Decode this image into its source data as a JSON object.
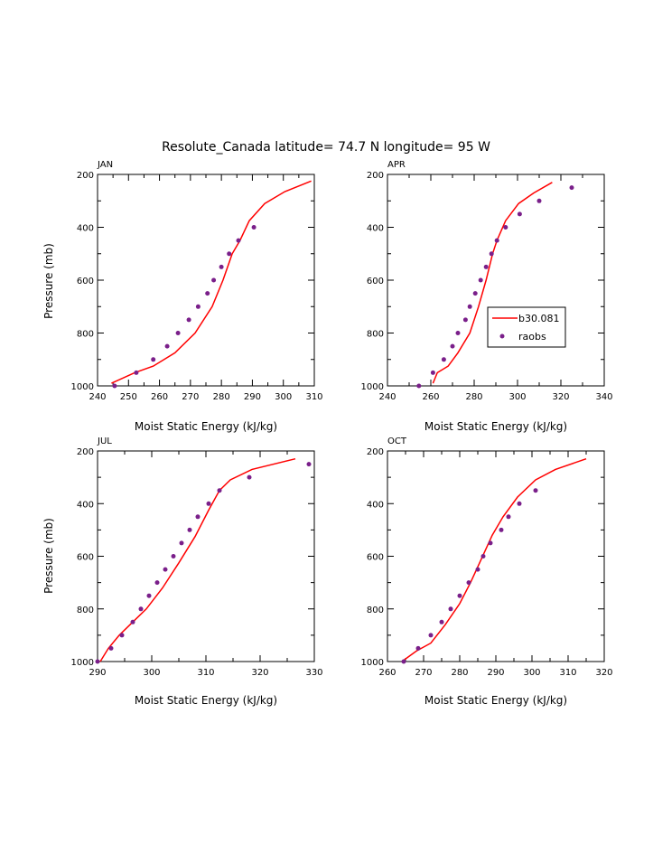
{
  "figure_title": "Resolute_Canada   latitude= 74.7 N longitude= 95 W",
  "colors": {
    "model_line": "#ff0000",
    "raobs_marker": "#7a1f8a",
    "axis": "#000000"
  },
  "legend": {
    "line_label": "b30.081",
    "marker_label": "raobs"
  },
  "chart_data": [
    {
      "type": "line",
      "panel": "JAN",
      "xlabel": "Moist Static Energy (kJ/kg)",
      "ylabel": "Pressure (mb)",
      "xlim": [
        240,
        310
      ],
      "ylim": [
        1000,
        200
      ],
      "xticks": [
        240,
        250,
        260,
        270,
        280,
        290,
        300,
        310
      ],
      "yticks": [
        200,
        400,
        600,
        800,
        1000
      ],
      "series": [
        {
          "name": "b30.081",
          "kind": "line",
          "points": [
            [
              244.5,
              990
            ],
            [
              252,
              950
            ],
            [
              258,
              925
            ],
            [
              265,
              875
            ],
            [
              271.5,
              800
            ],
            [
              277,
              700
            ],
            [
              280.5,
              600
            ],
            [
              283.5,
              500
            ],
            [
              286,
              450
            ],
            [
              289,
              375
            ],
            [
              294,
              310
            ],
            [
              300.5,
              265
            ],
            [
              309,
              225
            ]
          ]
        },
        {
          "name": "raobs",
          "kind": "marker",
          "points": [
            [
              245.5,
              1000
            ],
            [
              252.5,
              950
            ],
            [
              258,
              900
            ],
            [
              262.5,
              850
            ],
            [
              266,
              800
            ],
            [
              269.5,
              750
            ],
            [
              272.5,
              700
            ],
            [
              275.5,
              650
            ],
            [
              277.5,
              600
            ],
            [
              280,
              550
            ],
            [
              282.5,
              500
            ],
            [
              285.5,
              450
            ],
            [
              290.5,
              400
            ]
          ]
        }
      ]
    },
    {
      "type": "line",
      "panel": "APR",
      "xlabel": "Moist Static Energy (kJ/kg)",
      "ylabel": "",
      "xlim": [
        240,
        340
      ],
      "ylim": [
        1000,
        200
      ],
      "xticks": [
        240,
        260,
        280,
        300,
        320,
        340
      ],
      "yticks": [
        200,
        400,
        600,
        800,
        1000
      ],
      "legend_position": "right-middle",
      "series": [
        {
          "name": "b30.081",
          "kind": "line",
          "points": [
            [
              261,
              990
            ],
            [
              263,
              950
            ],
            [
              268,
              925
            ],
            [
              272.5,
              875
            ],
            [
              278,
              800
            ],
            [
              282,
              700
            ],
            [
              285.5,
              600
            ],
            [
              288.5,
              500
            ],
            [
              290.5,
              450
            ],
            [
              294.5,
              375
            ],
            [
              300.5,
              310
            ],
            [
              307.5,
              270
            ],
            [
              316,
              230
            ]
          ]
        },
        {
          "name": "raobs",
          "kind": "marker",
          "points": [
            [
              254.5,
              1000
            ],
            [
              261,
              950
            ],
            [
              266,
              900
            ],
            [
              270,
              850
            ],
            [
              272.5,
              800
            ],
            [
              276,
              750
            ],
            [
              278,
              700
            ],
            [
              280.5,
              650
            ],
            [
              283,
              600
            ],
            [
              285.5,
              550
            ],
            [
              288,
              500
            ],
            [
              290.5,
              450
            ],
            [
              294.5,
              400
            ],
            [
              301,
              350
            ],
            [
              310,
              300
            ],
            [
              325,
              250
            ]
          ]
        }
      ]
    },
    {
      "type": "line",
      "panel": "JUL",
      "xlabel": "Moist Static Energy (kJ/kg)",
      "ylabel": "Pressure (mb)",
      "xlim": [
        290,
        330
      ],
      "ylim": [
        1000,
        200
      ],
      "xticks": [
        290,
        300,
        310,
        320,
        330
      ],
      "yticks": [
        200,
        400,
        600,
        800,
        1000
      ],
      "series": [
        {
          "name": "b30.081",
          "kind": "line",
          "points": [
            [
              290.5,
              1000
            ],
            [
              292,
              950
            ],
            [
              294,
              900
            ],
            [
              296,
              860
            ],
            [
              299,
              800
            ],
            [
              302,
              720
            ],
            [
              305,
              625
            ],
            [
              308,
              525
            ],
            [
              310.5,
              425
            ],
            [
              312.5,
              350
            ],
            [
              314.5,
              310
            ],
            [
              318.5,
              270
            ],
            [
              326.5,
              230
            ]
          ]
        },
        {
          "name": "raobs",
          "kind": "marker",
          "points": [
            [
              290,
              1000
            ],
            [
              292.5,
              950
            ],
            [
              294.5,
              900
            ],
            [
              296.5,
              850
            ],
            [
              298,
              800
            ],
            [
              299.5,
              750
            ],
            [
              301,
              700
            ],
            [
              302.5,
              650
            ],
            [
              304,
              600
            ],
            [
              305.5,
              550
            ],
            [
              307,
              500
            ],
            [
              308.5,
              450
            ],
            [
              310.5,
              400
            ],
            [
              312.5,
              350
            ],
            [
              318,
              300
            ],
            [
              329,
              250
            ]
          ]
        }
      ]
    },
    {
      "type": "line",
      "panel": "OCT",
      "xlabel": "Moist Static Energy (kJ/kg)",
      "ylabel": "",
      "xlim": [
        260,
        320
      ],
      "ylim": [
        1000,
        200
      ],
      "xticks": [
        260,
        270,
        280,
        290,
        300,
        310,
        320
      ],
      "yticks": [
        200,
        400,
        600,
        800,
        1000
      ],
      "series": [
        {
          "name": "b30.081",
          "kind": "line",
          "points": [
            [
              264,
              1000
            ],
            [
              268,
              960
            ],
            [
              272,
              930
            ],
            [
              276,
              860
            ],
            [
              280,
              780
            ],
            [
              283,
              700
            ],
            [
              286,
              610
            ],
            [
              289,
              520
            ],
            [
              292,
              450
            ],
            [
              296,
              375
            ],
            [
              301,
              310
            ],
            [
              306.5,
              270
            ],
            [
              315,
              230
            ]
          ]
        },
        {
          "name": "raobs",
          "kind": "marker",
          "points": [
            [
              264.5,
              1000
            ],
            [
              268.5,
              950
            ],
            [
              272,
              900
            ],
            [
              275,
              850
            ],
            [
              277.5,
              800
            ],
            [
              280,
              750
            ],
            [
              282.5,
              700
            ],
            [
              285,
              650
            ],
            [
              286.5,
              600
            ],
            [
              288.5,
              550
            ],
            [
              291.5,
              500
            ],
            [
              293.5,
              450
            ],
            [
              296.5,
              400
            ],
            [
              301,
              350
            ]
          ]
        }
      ]
    }
  ]
}
